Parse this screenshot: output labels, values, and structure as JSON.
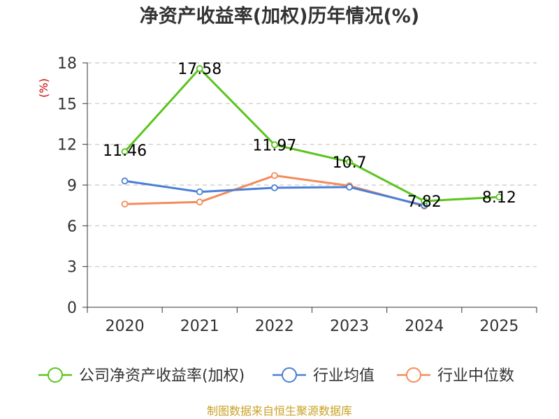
{
  "chart_data": {
    "type": "line",
    "title": "净资产收益率(加权)历年情况(%)",
    "ylabel": "(%)",
    "xlabel": "",
    "categories": [
      "2020",
      "2021",
      "2022",
      "2023",
      "2024",
      "2025"
    ],
    "ylim": [
      0,
      18
    ],
    "yticks": [
      0,
      3,
      6,
      9,
      12,
      15,
      18
    ],
    "grid": true,
    "legend_position": "bottom",
    "series": [
      {
        "name": "公司净资产收益率(加权)",
        "color": "#5ac41c",
        "values": [
          11.46,
          17.58,
          11.97,
          10.7,
          7.82,
          8.12
        ],
        "labels": [
          "11.46",
          "17.58",
          "11.97",
          "10.7",
          "7.82",
          "8.12"
        ]
      },
      {
        "name": "行业均值",
        "color": "#4a7fd6",
        "values": [
          9.3,
          8.5,
          8.8,
          8.85,
          7.5,
          null
        ],
        "labels": []
      },
      {
        "name": "行业中位数",
        "color": "#f28c5a",
        "values": [
          7.6,
          7.75,
          9.7,
          8.95,
          7.45,
          null
        ],
        "labels": []
      }
    ]
  },
  "footer": {
    "source": "制图数据来自恒生聚源数据库"
  }
}
